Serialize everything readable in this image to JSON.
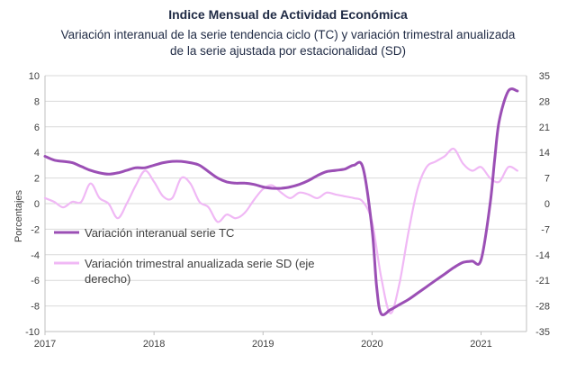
{
  "chart_data": {
    "type": "line",
    "title": "Indice Mensual de  Actividad Económica",
    "subtitle_line1": "Variación interanual de la serie tendencia ciclo (TC) y variación trimestral anualizada",
    "subtitle_line2": "de la serie ajustada por estacionalidad (SD)",
    "ylabel": "Porcentajes",
    "xlabel": "",
    "ylim_left": [
      -10,
      10
    ],
    "ylim_right": [
      -35,
      35
    ],
    "xlim": [
      2017.0,
      2021.4167
    ],
    "yticks_left": [
      "10",
      "8",
      "6",
      "4",
      "2",
      "0",
      "-2",
      "-4",
      "-6",
      "-8",
      "-10"
    ],
    "yticks_right": [
      "35",
      "28",
      "21",
      "14",
      "7",
      "0",
      "-7",
      "-14",
      "-21",
      "-28",
      "-35"
    ],
    "xticks": [
      {
        "label": "2017",
        "value": 2017
      },
      {
        "label": "2018",
        "value": 2018
      },
      {
        "label": "2019",
        "value": 2019
      },
      {
        "label": "2020",
        "value": 2020
      },
      {
        "label": "2021",
        "value": 2021
      }
    ],
    "grid": "horizontal",
    "legend_placement": "center-left",
    "series": [
      {
        "name": "Variación interanual serie TC",
        "axis": "left",
        "color": "#9b4fb5",
        "x": [
          2017.0,
          2017.083,
          2017.167,
          2017.25,
          2017.333,
          2017.417,
          2017.5,
          2017.583,
          2017.667,
          2017.75,
          2017.833,
          2017.917,
          2018.0,
          2018.083,
          2018.167,
          2018.25,
          2018.333,
          2018.417,
          2018.5,
          2018.583,
          2018.667,
          2018.75,
          2018.833,
          2018.917,
          2019.0,
          2019.083,
          2019.167,
          2019.25,
          2019.333,
          2019.417,
          2019.5,
          2019.583,
          2019.667,
          2019.75,
          2019.833,
          2019.917,
          2020.0,
          2020.042,
          2020.083,
          2020.167,
          2020.25,
          2020.333,
          2020.417,
          2020.5,
          2020.583,
          2020.667,
          2020.75,
          2020.833,
          2020.917,
          2021.0,
          2021.083,
          2021.125,
          2021.167,
          2021.25,
          2021.333
        ],
        "values": [
          3.7,
          3.4,
          3.3,
          3.2,
          2.9,
          2.6,
          2.4,
          2.3,
          2.4,
          2.6,
          2.8,
          2.8,
          3.0,
          3.2,
          3.3,
          3.3,
          3.2,
          3.0,
          2.5,
          2.0,
          1.7,
          1.6,
          1.6,
          1.5,
          1.3,
          1.2,
          1.2,
          1.3,
          1.5,
          1.8,
          2.2,
          2.5,
          2.6,
          2.7,
          3.0,
          2.8,
          -2.0,
          -6.5,
          -8.6,
          -8.3,
          -7.9,
          -7.5,
          -7.0,
          -6.5,
          -6.0,
          -5.5,
          -5.0,
          -4.6,
          -4.5,
          -4.4,
          0.0,
          3.5,
          6.5,
          8.8,
          8.8
        ]
      },
      {
        "name": "Variación trimestral anualizada serie SD (eje derecho)",
        "axis": "right",
        "color": "#f0b8f5",
        "x": [
          2017.0,
          2017.083,
          2017.167,
          2017.25,
          2017.333,
          2017.417,
          2017.5,
          2017.583,
          2017.667,
          2017.75,
          2017.833,
          2017.917,
          2018.0,
          2018.083,
          2018.167,
          2018.25,
          2018.333,
          2018.417,
          2018.5,
          2018.583,
          2018.667,
          2018.75,
          2018.833,
          2018.917,
          2019.0,
          2019.083,
          2019.167,
          2019.25,
          2019.333,
          2019.417,
          2019.5,
          2019.583,
          2019.667,
          2019.75,
          2019.833,
          2019.917,
          2020.0,
          2020.083,
          2020.167,
          2020.25,
          2020.333,
          2020.417,
          2020.5,
          2020.583,
          2020.667,
          2020.75,
          2020.833,
          2020.917,
          2021.0,
          2021.083,
          2021.167,
          2021.25,
          2021.333
        ],
        "values": [
          1.5,
          0.5,
          -1.0,
          0.5,
          0.5,
          5.5,
          1.5,
          0.0,
          -4.0,
          0.0,
          5.0,
          9.0,
          6.0,
          2.0,
          1.5,
          7.0,
          5.5,
          0.5,
          -1.0,
          -5.0,
          -3.0,
          -4.0,
          -2.5,
          1.0,
          4.0,
          5.0,
          3.0,
          1.5,
          3.0,
          2.5,
          1.5,
          3.0,
          2.5,
          2.0,
          1.5,
          0.5,
          -5.0,
          -20.0,
          -30.0,
          -22.0,
          -8.0,
          4.0,
          10.0,
          11.5,
          13.0,
          15.0,
          11.0,
          9.0,
          10.0,
          7.0,
          6.0,
          10.0,
          9.0
        ]
      }
    ]
  }
}
